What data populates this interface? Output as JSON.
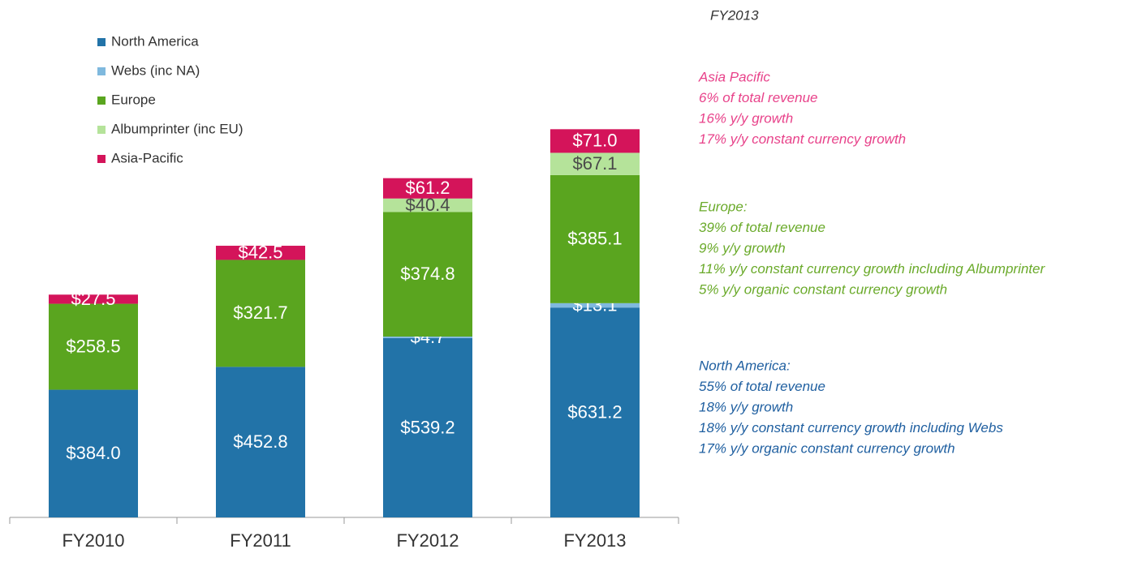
{
  "chart_data": {
    "type": "stacked_bar",
    "categories": [
      "FY2010",
      "FY2011",
      "FY2012",
      "FY2013"
    ],
    "series": [
      {
        "name": "North America",
        "color": "#2273a8",
        "label_color": "#ffffff",
        "values": [
          384.0,
          452.8,
          539.2,
          631.2
        ],
        "value_labels": [
          "$384.0",
          "$452.8",
          "$539.2",
          "$631.2"
        ]
      },
      {
        "name": "Webs (inc NA)",
        "color": "#7fb9de",
        "label_color": "#ffffff",
        "values": [
          null,
          null,
          4.7,
          13.1
        ],
        "value_labels": [
          null,
          null,
          "$4.7",
          "$13.1"
        ]
      },
      {
        "name": "Europe",
        "color": "#5aa51f",
        "label_color": "#ffffff",
        "values": [
          258.5,
          321.7,
          374.8,
          385.1
        ],
        "value_labels": [
          "$258.5",
          "$321.7",
          "$374.8",
          "$385.1"
        ]
      },
      {
        "name": "Albumprinter (inc EU)",
        "color": "#b5e39a",
        "label_color": "#4a4a4a",
        "values": [
          null,
          null,
          40.4,
          67.1
        ],
        "value_labels": [
          null,
          null,
          "$40.4",
          "$67.1"
        ]
      },
      {
        "name": "Asia-Pacific",
        "color": "#d4145a",
        "label_color": "#ffffff",
        "values": [
          27.5,
          42.5,
          61.2,
          71.0
        ],
        "value_labels": [
          "$27.5",
          "$42.5",
          "$61.2",
          "$71.0"
        ]
      }
    ],
    "legend": "top-left",
    "annotations": {
      "heading": "FY2013",
      "blocks": [
        {
          "color": "#e8428a",
          "lines": [
            "Asia Pacific",
            "6% of total revenue",
            "16% y/y growth",
            "17% y/y constant currency growth"
          ]
        },
        {
          "color": "#6aaa2a",
          "lines": [
            "Europe:",
            "39% of total revenue",
            "9% y/y growth",
            "11% y/y constant currency growth including Albumprinter",
            "5% y/y organic constant currency growth"
          ]
        },
        {
          "color": "#1f5fa0",
          "lines": [
            "North America:",
            "55% of total revenue",
            "18% y/y growth",
            "18% y/y constant currency growth including Webs",
            "17% y/y organic constant currency growth"
          ]
        }
      ]
    }
  }
}
